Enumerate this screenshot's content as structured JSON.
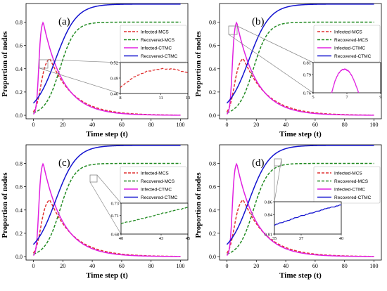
{
  "figure": {
    "panels": [
      "(a)",
      "(b)",
      "(c)",
      "(d)"
    ],
    "xlabel": "Time step (t)",
    "ylabel": "Proportion of nodes"
  },
  "colors": {
    "infected_mcs": "#e03030",
    "recovered_mcs": "#228B22",
    "infected_ctmc": "#e020e0",
    "recovered_ctmc": "#1515d0",
    "connector": "#888888"
  },
  "chart_data": [
    {
      "panel": "(a)",
      "type": "line",
      "xlabel": "Time step (t)",
      "ylabel": "Proportion of nodes",
      "xlim": [
        -5,
        105
      ],
      "ylim": [
        -0.03,
        0.96
      ],
      "xticks": [
        0,
        20,
        40,
        60,
        80,
        100
      ],
      "yticks": [
        0.0,
        0.2,
        0.4,
        0.6,
        0.8
      ],
      "legend": [
        "Infected-MCS",
        "Recovered-MCS",
        "Infected-CTMC",
        "Recovered-CTMC"
      ],
      "legend_position": "center-right",
      "inset": {
        "xlim": [
          8,
          13
        ],
        "ylim": [
          0.46,
          0.52
        ],
        "xticks": [
          8,
          11,
          13
        ],
        "yticks": [
          0.46,
          0.49,
          0.52
        ],
        "series": "Infected-MCS",
        "points": [
          [
            8,
            0.472
          ],
          [
            9,
            0.492
          ],
          [
            10,
            0.503
          ],
          [
            11,
            0.508
          ],
          [
            12,
            0.507
          ],
          [
            13,
            0.5
          ]
        ]
      }
    },
    {
      "panel": "(b)",
      "type": "line",
      "xlabel": "Time step (t)",
      "ylabel": "Proportion of nodes",
      "xlim": [
        -5,
        105
      ],
      "ylim": [
        -0.03,
        0.96
      ],
      "xticks": [
        0,
        20,
        40,
        60,
        80,
        100
      ],
      "yticks": [
        0.0,
        0.2,
        0.4,
        0.6,
        0.8
      ],
      "legend": [
        "Infected-MCS",
        "Recovered-MCS",
        "Infected-CTMC",
        "Recovered-CTMC"
      ],
      "legend_position": "center-right",
      "inset": {
        "xlim": [
          5,
          9
        ],
        "ylim": [
          0.76,
          0.81
        ],
        "xticks": [
          5,
          7,
          9
        ],
        "yticks": [
          0.76,
          0.79,
          0.81
        ],
        "series": "Infected-CTMC",
        "points": [
          [
            6.1,
            0.76
          ],
          [
            6.3,
            0.78
          ],
          [
            6.5,
            0.792
          ],
          [
            6.7,
            0.798
          ],
          [
            6.9,
            0.799
          ],
          [
            7.1,
            0.796
          ],
          [
            7.3,
            0.788
          ],
          [
            7.5,
            0.775
          ],
          [
            7.7,
            0.76
          ]
        ]
      }
    },
    {
      "panel": "(c)",
      "type": "line",
      "xlabel": "Time step (t)",
      "ylabel": "Proportion of nodes",
      "xlim": [
        -5,
        105
      ],
      "ylim": [
        -0.03,
        0.96
      ],
      "xticks": [
        0,
        20,
        40,
        60,
        80,
        100
      ],
      "yticks": [
        0.0,
        0.2,
        0.4,
        0.6,
        0.8
      ],
      "legend": [
        "Infected-MCS",
        "Recovered-MCS",
        "Infected-CTMC",
        "Recovered-CTMC"
      ],
      "legend_position": "center-right",
      "inset": {
        "xlim": [
          40,
          45
        ],
        "ylim": [
          0.68,
          0.73
        ],
        "xticks": [
          40,
          43,
          45
        ],
        "yticks": [
          0.68,
          0.71,
          0.73
        ],
        "series": "Recovered-MCS",
        "points": [
          [
            40,
            0.697
          ],
          [
            41,
            0.702
          ],
          [
            42,
            0.707
          ],
          [
            43,
            0.713
          ],
          [
            44,
            0.718
          ],
          [
            45,
            0.723
          ]
        ]
      }
    },
    {
      "panel": "(d)",
      "type": "line",
      "xlabel": "Time step (t)",
      "ylabel": "Proportion of nodes",
      "xlim": [
        -5,
        105
      ],
      "ylim": [
        -0.03,
        0.96
      ],
      "xticks": [
        0,
        20,
        40,
        60,
        80,
        100
      ],
      "yticks": [
        0.0,
        0.2,
        0.4,
        0.6,
        0.8
      ],
      "legend": [
        "Infected-MCS",
        "Recovered-MCS",
        "Infected-CTMC",
        "Recovered-CTMC"
      ],
      "legend_position": "center-right",
      "inset": {
        "xlim": [
          35,
          40
        ],
        "ylim": [
          0.81,
          0.86
        ],
        "xticks": [
          35,
          37,
          40
        ],
        "yticks": [
          0.81,
          0.84,
          0.86
        ],
        "series": "Recovered-CTMC",
        "points": [
          [
            35,
            0.824
          ],
          [
            36,
            0.831
          ],
          [
            37,
            0.838
          ],
          [
            38,
            0.844
          ],
          [
            39,
            0.85
          ],
          [
            40,
            0.855
          ]
        ]
      }
    }
  ]
}
